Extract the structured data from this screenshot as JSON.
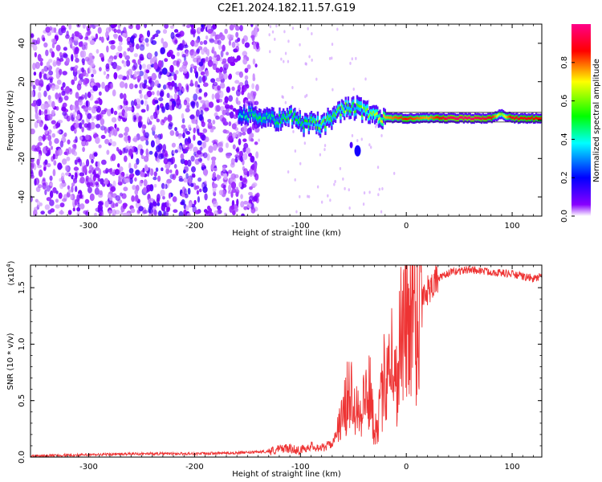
{
  "chart_data": [
    {
      "type": "heatmap",
      "title": "C2E1.2024.182.11.57.G19",
      "xlabel": "Height of straight line (km)",
      "ylabel": "Frequency (Hz)",
      "xlim": [
        -355,
        128
      ],
      "ylim": [
        -50,
        50
      ],
      "x_ticks": [
        -300,
        -200,
        -100,
        0,
        100
      ],
      "x_tick_labels": [
        "-300",
        "-200",
        "-100",
        "0",
        "100"
      ],
      "y_ticks": [
        -40,
        -20,
        0,
        20,
        40
      ],
      "y_tick_labels": [
        "-40",
        "-20",
        "0",
        "20",
        "40"
      ],
      "colorbar": {
        "label": "Normalized spectral amplitude",
        "range": [
          0,
          1
        ],
        "ticks": [
          0.0,
          0.2,
          0.4,
          0.6,
          0.8
        ],
        "tick_labels": [
          "0.0",
          "0.2",
          "0.4",
          "0.6",
          "0.8"
        ],
        "colors": [
          "#ffffff",
          "#8800ff",
          "#0000ff",
          "#00ffff",
          "#00ff00",
          "#ffff00",
          "#ff0000",
          "#ff0088"
        ]
      },
      "noise_region": {
        "x_range": [
          -355,
          -140
        ],
        "y_range": [
          -50,
          50
        ],
        "amplitude_range": [
          0.02,
          0.15
        ]
      },
      "ridge": [
        {
          "x": -158,
          "y": 2.5,
          "amp": 0.4
        },
        {
          "x": -150,
          "y": 3,
          "amp": 0.45
        },
        {
          "x": -140,
          "y": 2,
          "amp": 0.5
        },
        {
          "x": -130,
          "y": 1,
          "amp": 0.45
        },
        {
          "x": -120,
          "y": 0,
          "amp": 0.5
        },
        {
          "x": -110,
          "y": 3,
          "amp": 0.55
        },
        {
          "x": -100,
          "y": -2,
          "amp": 0.5
        },
        {
          "x": -90,
          "y": -1,
          "amp": 0.55
        },
        {
          "x": -80,
          "y": -3,
          "amp": 0.6
        },
        {
          "x": -70,
          "y": 2,
          "amp": 0.55
        },
        {
          "x": -60,
          "y": 6,
          "amp": 0.6
        },
        {
          "x": -50,
          "y": 7,
          "amp": 0.55
        },
        {
          "x": -40,
          "y": 4,
          "amp": 0.6
        },
        {
          "x": -30,
          "y": 2,
          "amp": 0.65
        },
        {
          "x": -20,
          "y": 1,
          "amp": 0.75
        },
        {
          "x": -10,
          "y": 1,
          "amp": 0.8
        },
        {
          "x": 0,
          "y": 1,
          "amp": 0.85
        },
        {
          "x": 20,
          "y": 1,
          "amp": 0.75
        },
        {
          "x": 40,
          "y": 1,
          "amp": 0.95
        },
        {
          "x": 60,
          "y": 1,
          "amp": 0.97
        },
        {
          "x": 80,
          "y": 1,
          "amp": 0.9
        },
        {
          "x": 90,
          "y": 3,
          "amp": 0.6
        },
        {
          "x": 100,
          "y": 1,
          "amp": 0.9
        },
        {
          "x": 128,
          "y": 1,
          "amp": 0.85
        }
      ]
    },
    {
      "type": "line",
      "title": "",
      "xlabel": "Height of straight line (km)",
      "ylabel": "SNR (10 * v/v)",
      "y_multiplier_label": "(x10",
      "y_multiplier_exponent": "4",
      "xlim": [
        -355,
        128
      ],
      "ylim": [
        0,
        1.7
      ],
      "x_ticks": [
        -300,
        -200,
        -100,
        0,
        100
      ],
      "x_tick_labels": [
        "-300",
        "-200",
        "-100",
        "0",
        "100"
      ],
      "y_ticks": [
        0.0,
        0.5,
        1.0,
        1.5
      ],
      "y_tick_labels": [
        "0.0",
        "0.5",
        "1.0",
        "1.5"
      ],
      "series": [
        {
          "name": "SNR",
          "color": "#ee3333",
          "x": [
            -355,
            -300,
            -250,
            -200,
            -150,
            -130,
            -115,
            -100,
            -90,
            -80,
            -70,
            -60,
            -55,
            -50,
            -45,
            -40,
            -35,
            -30,
            -25,
            -20,
            -15,
            -10,
            -5,
            0,
            5,
            10,
            15,
            20,
            25,
            30,
            35,
            40,
            50,
            60,
            70,
            80,
            90,
            100,
            110,
            120,
            128
          ],
          "y": [
            0.01,
            0.02,
            0.03,
            0.03,
            0.04,
            0.05,
            0.08,
            0.06,
            0.1,
            0.08,
            0.12,
            0.35,
            0.55,
            0.6,
            0.4,
            0.5,
            0.6,
            0.25,
            0.4,
            0.75,
            1.0,
            0.6,
            1.15,
            1.1,
            1.4,
            1.25,
            1.45,
            1.48,
            1.55,
            1.58,
            1.6,
            1.63,
            1.65,
            1.66,
            1.65,
            1.64,
            1.63,
            1.62,
            1.6,
            1.58,
            1.6
          ]
        }
      ]
    }
  ]
}
